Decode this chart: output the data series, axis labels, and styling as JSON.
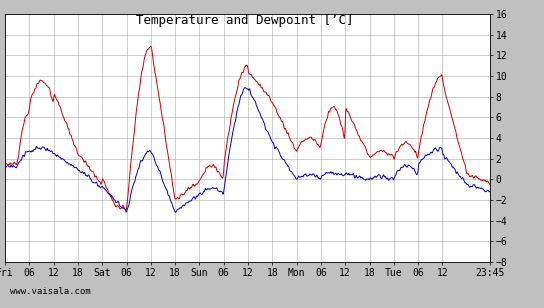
{
  "title": "Temperature and Dewpoint [’C]",
  "ylim": [
    -8,
    16
  ],
  "yticks": [
    -8,
    -6,
    -4,
    -2,
    0,
    2,
    4,
    6,
    8,
    10,
    12,
    14,
    16
  ],
  "xtick_labels": [
    "Fri",
    "06",
    "12",
    "18",
    "Sat",
    "06",
    "12",
    "18",
    "Sun",
    "06",
    "12",
    "18",
    "Mon",
    "06",
    "12",
    "18",
    "Tue",
    "06",
    "12",
    "23:45"
  ],
  "xtick_positions": [
    0,
    360,
    720,
    1080,
    1440,
    1800,
    2160,
    2520,
    2880,
    3240,
    3600,
    3960,
    4320,
    4680,
    5040,
    5400,
    5760,
    6120,
    6480,
    7185
  ],
  "xlim": [
    0,
    7185
  ],
  "temp_color": "#cc0000",
  "dewp_color": "#0000cc",
  "plot_bg_color": "#ffffff",
  "fig_bg_color": "#c0c0c0",
  "grid_color": "#aaaaaa",
  "title_fontsize": 9,
  "tick_fontsize": 7,
  "watermark": "www.vaisala.com",
  "linewidth": 0.7
}
